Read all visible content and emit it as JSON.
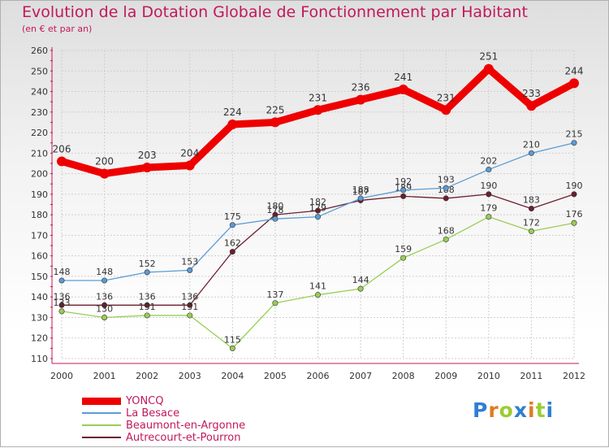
{
  "header": {
    "title": "Evolution de la Dotation Globale de Fonctionnement par Habitant",
    "subtitle": "(en € et par an)"
  },
  "logo": {
    "text": "Proxiti"
  },
  "chart_data": {
    "type": "line",
    "title": "Evolution de la Dotation Globale de Fonctionnement par Habitant",
    "subtitle": "(en € et par an)",
    "xlabel": "",
    "ylabel": "",
    "categories": [
      "2000",
      "2001",
      "2002",
      "2003",
      "2004",
      "2005",
      "2006",
      "2007",
      "2008",
      "2009",
      "2010",
      "2011",
      "2012"
    ],
    "ylim": [
      110,
      260
    ],
    "yticks": [
      110,
      120,
      130,
      140,
      150,
      160,
      170,
      180,
      190,
      200,
      210,
      220,
      230,
      240,
      250,
      260
    ],
    "grid": true,
    "legend_position": "bottom-left",
    "series": [
      {
        "name": "YONCQ",
        "color": "#ee0000",
        "values": [
          206,
          200,
          203,
          204,
          224,
          225,
          231,
          236,
          241,
          231,
          251,
          233,
          244
        ]
      },
      {
        "name": "La Besace",
        "color": "#5b9bd5",
        "values": [
          148,
          148,
          152,
          153,
          175,
          178,
          179,
          188,
          192,
          193,
          202,
          210,
          215
        ]
      },
      {
        "name": "Beaumont-en-Argonne",
        "color": "#9acd55",
        "values": [
          133,
          130,
          131,
          131,
          115,
          137,
          141,
          144,
          159,
          168,
          179,
          172,
          176
        ]
      },
      {
        "name": "Autrecourt-et-Pourron",
        "color": "#6b1f2e",
        "values": [
          136,
          136,
          136,
          136,
          162,
          180,
          182,
          187,
          189,
          188,
          190,
          183,
          190
        ]
      }
    ]
  }
}
